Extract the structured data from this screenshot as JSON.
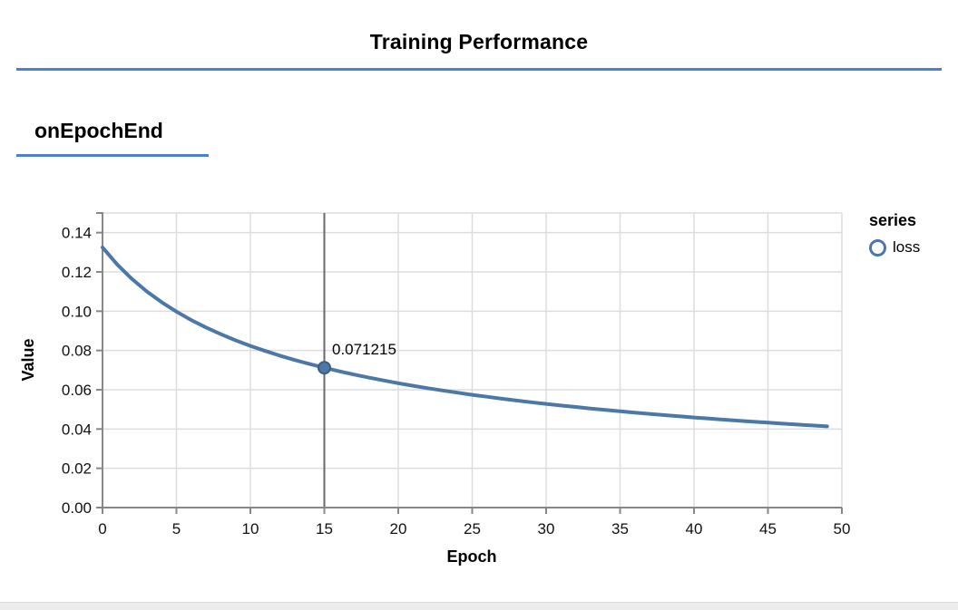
{
  "header": {
    "title": "Training Performance"
  },
  "section": {
    "label": "onEpochEnd"
  },
  "legend": {
    "title": "series",
    "items": [
      {
        "label": "loss",
        "color": "#4c78a8"
      }
    ]
  },
  "colors": {
    "accent": "#4a7fd4",
    "series": "#4c78a8",
    "point_stroke": "#3b5d82",
    "grid": "#dddddd",
    "axis": "#888888",
    "rule": "#6a6a6a",
    "label": "#111111"
  },
  "chart_data": {
    "type": "line",
    "title": "",
    "xlabel": "Epoch",
    "ylabel": "Value",
    "xlim": [
      0,
      50
    ],
    "ylim": [
      0,
      0.15
    ],
    "x_ticks": [
      0,
      5,
      10,
      15,
      20,
      25,
      30,
      35,
      40,
      45,
      50
    ],
    "y_ticks": [
      0.0,
      0.02,
      0.04,
      0.06,
      0.08,
      0.1,
      0.12,
      0.14
    ],
    "grid": true,
    "legend_position": "right",
    "series": [
      {
        "name": "loss",
        "color": "#4c78a8",
        "x": [
          0,
          1,
          2,
          3,
          4,
          5,
          6,
          7,
          8,
          9,
          10,
          11,
          12,
          13,
          14,
          15,
          16,
          17,
          18,
          19,
          20,
          21,
          22,
          23,
          24,
          25,
          26,
          27,
          28,
          29,
          30,
          31,
          32,
          33,
          34,
          35,
          36,
          37,
          38,
          39,
          40,
          41,
          42,
          43,
          44,
          45,
          46,
          47,
          48,
          49
        ],
        "values": [
          0.1325,
          0.12374,
          0.116364,
          0.110049,
          0.104572,
          0.099768,
          0.095513,
          0.091704,
          0.088276,
          0.085171,
          0.082344,
          0.079754,
          0.077364,
          0.075148,
          0.073108,
          0.071215,
          0.069424,
          0.067764,
          0.066204,
          0.064733,
          0.063341,
          0.062029,
          0.060788,
          0.059617,
          0.058504,
          0.057434,
          0.056424,
          0.055453,
          0.054529,
          0.053647,
          0.052804,
          0.051992,
          0.051211,
          0.050459,
          0.049736,
          0.049038,
          0.048366,
          0.047717,
          0.047091,
          0.046485,
          0.045899,
          0.045332,
          0.044783,
          0.044251,
          0.043735,
          0.043234,
          0.042748,
          0.042276,
          0.041817,
          0.041371
        ]
      }
    ],
    "highlight": {
      "x": 15,
      "value": 0.071215,
      "label": "0.071215"
    }
  }
}
